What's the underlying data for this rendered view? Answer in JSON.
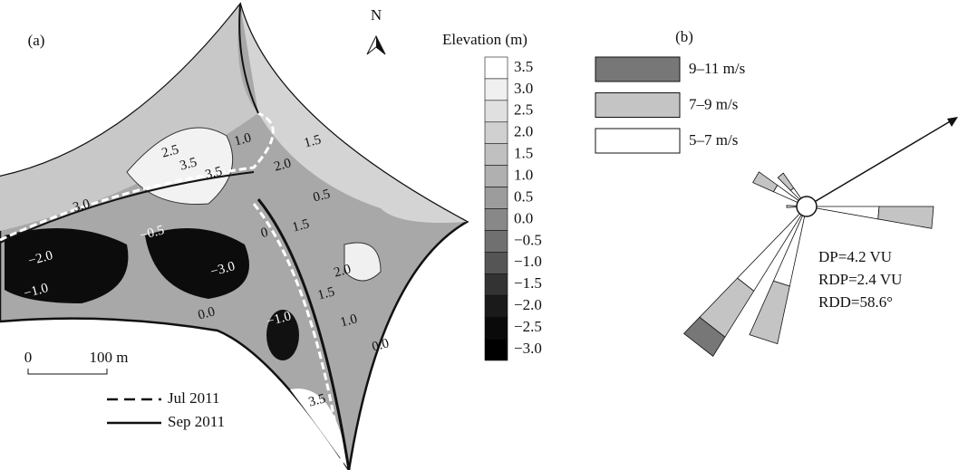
{
  "panel_a": {
    "label": "(a)",
    "north": "N",
    "scale_bar": {
      "start": "0",
      "end": "100 m"
    },
    "line_legend": [
      {
        "label": "Jul 2011",
        "style": "dashed"
      },
      {
        "label": "Sep 2011",
        "style": "solid"
      }
    ],
    "contour_labels": [
      "2.5",
      "3.5",
      "3.5",
      "3.0",
      "1.0",
      "1.5",
      "2.0",
      "0.5",
      "1.5",
      "−0.5",
      "−2.0",
      "−3.0",
      "−1.0",
      "0.0",
      "−1.0",
      "0",
      "2.0",
      "1.5",
      "1.0",
      "0.0",
      "3.5"
    ],
    "elevation_legend": {
      "title": "Elevation (m)",
      "items": [
        {
          "label": "3.5",
          "color": "#ffffff"
        },
        {
          "label": "3.0",
          "color": "#f0f0f0"
        },
        {
          "label": "2.5",
          "color": "#e0e0e0"
        },
        {
          "label": "2.0",
          "color": "#d0d0d0"
        },
        {
          "label": "1.5",
          "color": "#c0c0c0"
        },
        {
          "label": "1.0",
          "color": "#b0b0b0"
        },
        {
          "label": "0.5",
          "color": "#9c9c9c"
        },
        {
          "label": "0.0",
          "color": "#888888"
        },
        {
          "label": "−0.5",
          "color": "#707070"
        },
        {
          "label": "−1.0",
          "color": "#555555"
        },
        {
          "label": "−1.5",
          "color": "#333333"
        },
        {
          "label": "−2.0",
          "color": "#1a1a1a"
        },
        {
          "label": "−2.5",
          "color": "#0a0a0a"
        },
        {
          "label": "−3.0",
          "color": "#000000"
        }
      ]
    }
  },
  "panel_b": {
    "label": "(b)",
    "wind_legend": [
      {
        "label": "9–11 m/s",
        "color": "#777777"
      },
      {
        "label": "7–9 m/s",
        "color": "#c4c4c4"
      },
      {
        "label": "5–7 m/s",
        "color": "#ffffff"
      }
    ],
    "stats": [
      "DP=4.2 VU",
      "RDP=2.4 VU",
      "RDD=58.6°"
    ]
  }
}
